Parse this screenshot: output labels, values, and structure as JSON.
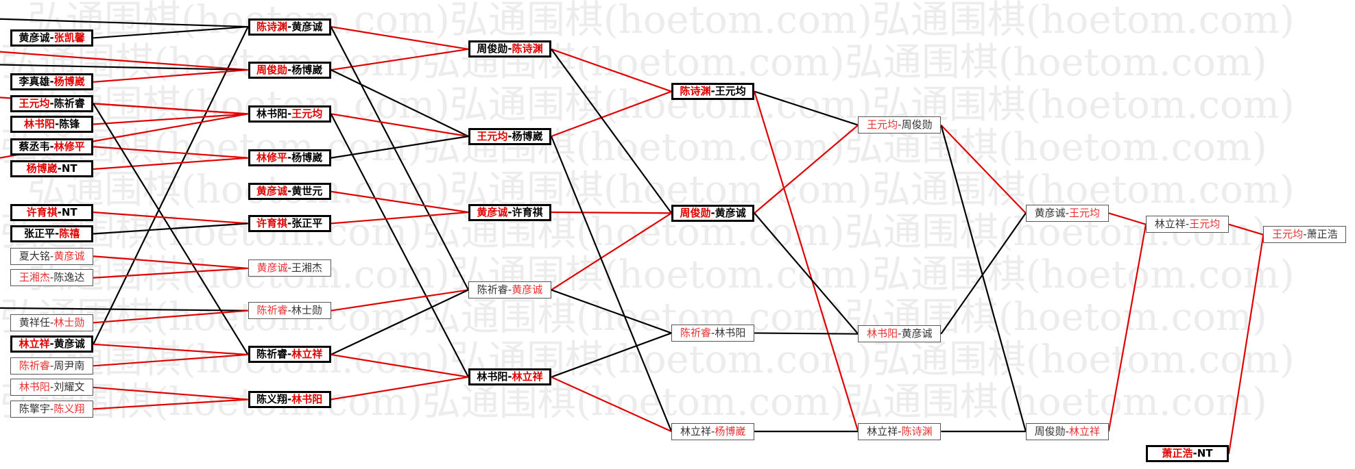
{
  "watermark": "弘通围棋(hoetom.com)",
  "colors": {
    "winner": "#e00000",
    "loser": "#000000"
  },
  "matches": [
    {
      "id": "r1_1",
      "a": "黄彦诚",
      "b": "张凯馨",
      "winner": "b",
      "emphasis": true
    },
    {
      "id": "r1_2",
      "a": "李真雄",
      "b": "杨博崴",
      "winner": "b",
      "emphasis": true
    },
    {
      "id": "r1_3",
      "a": "王元均",
      "b": "陈祈睿",
      "winner": "a",
      "emphasis": true
    },
    {
      "id": "r1_4",
      "a": "林书阳",
      "b": "陈锋",
      "winner": "a",
      "emphasis": true
    },
    {
      "id": "r1_5",
      "a": "蔡丞韦",
      "b": "林修平",
      "winner": "b",
      "emphasis": true
    },
    {
      "id": "r1_6",
      "a": "杨博崴",
      "b": "NT",
      "winner": "a",
      "emphasis": true
    },
    {
      "id": "r1_7",
      "a": "许育祺",
      "b": "NT",
      "winner": "a",
      "emphasis": true
    },
    {
      "id": "r1_8",
      "a": "张正平",
      "b": "陈禧",
      "winner": "b",
      "emphasis": true
    },
    {
      "id": "r1_9",
      "a": "夏大铭",
      "b": "黄彦诚",
      "winner": "b",
      "emphasis": false
    },
    {
      "id": "r1_10",
      "a": "王湘杰",
      "b": "陈逸达",
      "winner": "a",
      "emphasis": false
    },
    {
      "id": "r1_11",
      "a": "黄祥任",
      "b": "林士勋",
      "winner": "b",
      "emphasis": false
    },
    {
      "id": "r1_12",
      "a": "林立祥",
      "b": "黄彦诚",
      "winner": "a",
      "emphasis": true
    },
    {
      "id": "r1_13",
      "a": "陈祈睿",
      "b": "周尹南",
      "winner": "a",
      "emphasis": false
    },
    {
      "id": "r1_14",
      "a": "林书阳",
      "b": "刘耀文",
      "winner": "a",
      "emphasis": false
    },
    {
      "id": "r1_15",
      "a": "陈擎宇",
      "b": "陈义翔",
      "winner": "b",
      "emphasis": false
    },
    {
      "id": "r2_1",
      "a": "陈诗渊",
      "b": "黄彦诚",
      "winner": "a",
      "emphasis": true
    },
    {
      "id": "r2_2",
      "a": "周俊勋",
      "b": "杨博崴",
      "winner": "a",
      "emphasis": true
    },
    {
      "id": "r2_3",
      "a": "林书阳",
      "b": "王元均",
      "winner": "b",
      "emphasis": true
    },
    {
      "id": "r2_4",
      "a": "林修平",
      "b": "杨博崴",
      "winner": "a",
      "emphasis": true
    },
    {
      "id": "r2_5",
      "a": "黄彦诚",
      "b": "黄世元",
      "winner": "a",
      "emphasis": true
    },
    {
      "id": "r2_6",
      "a": "许育祺",
      "b": "张正平",
      "winner": "a",
      "emphasis": true
    },
    {
      "id": "r2_7",
      "a": "黄彦诚",
      "b": "王湘杰",
      "winner": "a",
      "emphasis": false
    },
    {
      "id": "r2_8",
      "a": "陈祈睿",
      "b": "林士勋",
      "winner": "a",
      "emphasis": false
    },
    {
      "id": "r2_9",
      "a": "陈祈睿",
      "b": "林立祥",
      "winner": "b",
      "emphasis": true
    },
    {
      "id": "r2_10",
      "a": "陈义翔",
      "b": "林书阳",
      "winner": "b",
      "emphasis": true
    },
    {
      "id": "r3_1",
      "a": "周俊勋",
      "b": "陈诗渊",
      "winner": "b",
      "emphasis": true
    },
    {
      "id": "r3_2",
      "a": "王元均",
      "b": "杨博崴",
      "winner": "a",
      "emphasis": true
    },
    {
      "id": "r3_3",
      "a": "黄彦诚",
      "b": "许育祺",
      "winner": "a",
      "emphasis": true
    },
    {
      "id": "r3_4",
      "a": "陈祈睿",
      "b": "黄彦诚",
      "winner": "b",
      "emphasis": false
    },
    {
      "id": "r3_5",
      "a": "林书阳",
      "b": "林立祥",
      "winner": "b",
      "emphasis": true
    },
    {
      "id": "r4_1",
      "a": "陈诗渊",
      "b": "王元均",
      "winner": "a",
      "emphasis": true
    },
    {
      "id": "r4_2",
      "a": "周俊勋",
      "b": "黄彦诚",
      "winner": "a",
      "emphasis": true
    },
    {
      "id": "r4_3",
      "a": "陈祈睿",
      "b": "林书阳",
      "winner": "a",
      "emphasis": false
    },
    {
      "id": "r4_4",
      "a": "林立祥",
      "b": "杨博崴",
      "winner": "b",
      "emphasis": false
    },
    {
      "id": "r5_1",
      "a": "王元均",
      "b": "周俊勋",
      "winner": "a",
      "emphasis": false
    },
    {
      "id": "r5_2",
      "a": "林书阳",
      "b": "黄彦诚",
      "winner": "a",
      "emphasis": false
    },
    {
      "id": "r5_3",
      "a": "林立祥",
      "b": "陈诗渊",
      "winner": "b",
      "emphasis": false
    },
    {
      "id": "r6_1",
      "a": "黄彦诚",
      "b": "王元均",
      "winner": "b",
      "emphasis": false
    },
    {
      "id": "r6_2",
      "a": "周俊勋",
      "b": "林立祥",
      "winner": "b",
      "emphasis": false
    },
    {
      "id": "r7_1",
      "a": "林立祥",
      "b": "王元均",
      "winner": "b",
      "emphasis": false
    },
    {
      "id": "r7_2",
      "a": "萧正浩",
      "b": "NT",
      "winner": "a",
      "emphasis": true
    },
    {
      "id": "r8_1",
      "a": "王元均",
      "b": "萧正浩",
      "winner": "a",
      "emphasis": false
    }
  ],
  "links": [
    {
      "from": "edge_1",
      "to": "r2_1",
      "color": "black"
    },
    {
      "from": "r1_1",
      "to": "r2_1",
      "color": "black"
    },
    {
      "from": "r1_12",
      "to": "r2_1",
      "color": "black"
    },
    {
      "from": "edge_2",
      "to": "r2_2",
      "color": "red"
    },
    {
      "from": "edge_3",
      "to": "r2_2",
      "color": "black"
    },
    {
      "from": "r1_2",
      "to": "r2_2",
      "color": "red"
    },
    {
      "from": "edge_4",
      "to": "r2_3",
      "color": "red"
    },
    {
      "from": "edge_5",
      "to": "r2_3",
      "color": "red"
    },
    {
      "from": "r1_3",
      "to": "r2_3",
      "color": "red"
    },
    {
      "from": "r1_4",
      "to": "r2_3",
      "color": "red"
    },
    {
      "from": "r1_5",
      "to": "r2_4",
      "color": "red"
    },
    {
      "from": "r1_6",
      "to": "r2_4",
      "color": "red"
    },
    {
      "from": "r1_3",
      "to": "r2_9",
      "color": "black"
    },
    {
      "from": "r1_7",
      "to": "r2_6",
      "color": "red"
    },
    {
      "from": "r1_8",
      "to": "r2_6",
      "color": "black"
    },
    {
      "from": "r1_9",
      "to": "r2_7",
      "color": "red"
    },
    {
      "from": "r1_10",
      "to": "r2_7",
      "color": "red"
    },
    {
      "from": "edge_6",
      "to": "r2_8",
      "color": "black"
    },
    {
      "from": "r1_11",
      "to": "r2_8",
      "color": "red"
    },
    {
      "from": "r1_12",
      "to": "r2_9",
      "color": "red"
    },
    {
      "from": "r1_13",
      "to": "r2_9",
      "color": "red"
    },
    {
      "from": "r1_14",
      "to": "r2_10",
      "color": "red"
    },
    {
      "from": "r1_15",
      "to": "r2_10",
      "color": "red"
    },
    {
      "from": "r2_1",
      "to": "r3_1",
      "color": "red"
    },
    {
      "from": "r2_2",
      "to": "r3_1",
      "color": "red"
    },
    {
      "from": "r2_1",
      "to": "r3_4",
      "color": "black"
    },
    {
      "from": "r2_2",
      "to": "r3_2",
      "color": "black"
    },
    {
      "from": "r2_3",
      "to": "r3_2",
      "color": "red"
    },
    {
      "from": "r2_4",
      "to": "r3_2",
      "color": "black"
    },
    {
      "from": "r2_3",
      "to": "r3_5",
      "color": "black"
    },
    {
      "from": "r2_5",
      "to": "r3_3",
      "color": "red"
    },
    {
      "from": "r2_6",
      "to": "r3_3",
      "color": "red"
    },
    {
      "from": "r2_8",
      "to": "r3_4",
      "color": "red"
    },
    {
      "from": "r2_9",
      "to": "r3_4",
      "color": "black"
    },
    {
      "from": "r2_9",
      "to": "r3_5",
      "color": "red"
    },
    {
      "from": "r2_10",
      "to": "r3_5",
      "color": "red"
    },
    {
      "from": "r3_1",
      "to": "r4_1",
      "color": "red"
    },
    {
      "from": "r3_2",
      "to": "r4_1",
      "color": "red"
    },
    {
      "from": "r3_1",
      "to": "r4_2",
      "color": "black"
    },
    {
      "from": "r3_3",
      "to": "r4_2",
      "color": "red"
    },
    {
      "from": "r3_4",
      "to": "r4_2",
      "color": "red"
    },
    {
      "from": "r3_4",
      "to": "r4_3",
      "color": "black"
    },
    {
      "from": "r3_5",
      "to": "r4_3",
      "color": "black"
    },
    {
      "from": "r3_2",
      "to": "r4_4",
      "color": "black"
    },
    {
      "from": "r3_5",
      "to": "r4_4",
      "color": "red"
    },
    {
      "from": "r4_1",
      "to": "r5_1",
      "color": "black"
    },
    {
      "from": "r4_2",
      "to": "r5_1",
      "color": "red"
    },
    {
      "from": "r4_1",
      "to": "r5_3",
      "color": "red"
    },
    {
      "from": "r4_2",
      "to": "r5_2",
      "color": "black"
    },
    {
      "from": "r4_3",
      "to": "r5_2",
      "color": "black"
    },
    {
      "from": "r4_4",
      "to": "r5_3",
      "color": "black"
    },
    {
      "from": "r5_1",
      "to": "r6_1",
      "color": "red"
    },
    {
      "from": "r5_2",
      "to": "r6_1",
      "color": "black"
    },
    {
      "from": "r5_1",
      "to": "r6_2",
      "color": "black"
    },
    {
      "from": "r5_3",
      "to": "r6_2",
      "color": "black"
    },
    {
      "from": "r6_1",
      "to": "r7_1",
      "color": "red"
    },
    {
      "from": "r6_2",
      "to": "r7_1",
      "color": "red"
    },
    {
      "from": "r7_1",
      "to": "r8_1",
      "color": "red"
    },
    {
      "from": "r7_2",
      "to": "r8_1",
      "color": "red"
    }
  ]
}
